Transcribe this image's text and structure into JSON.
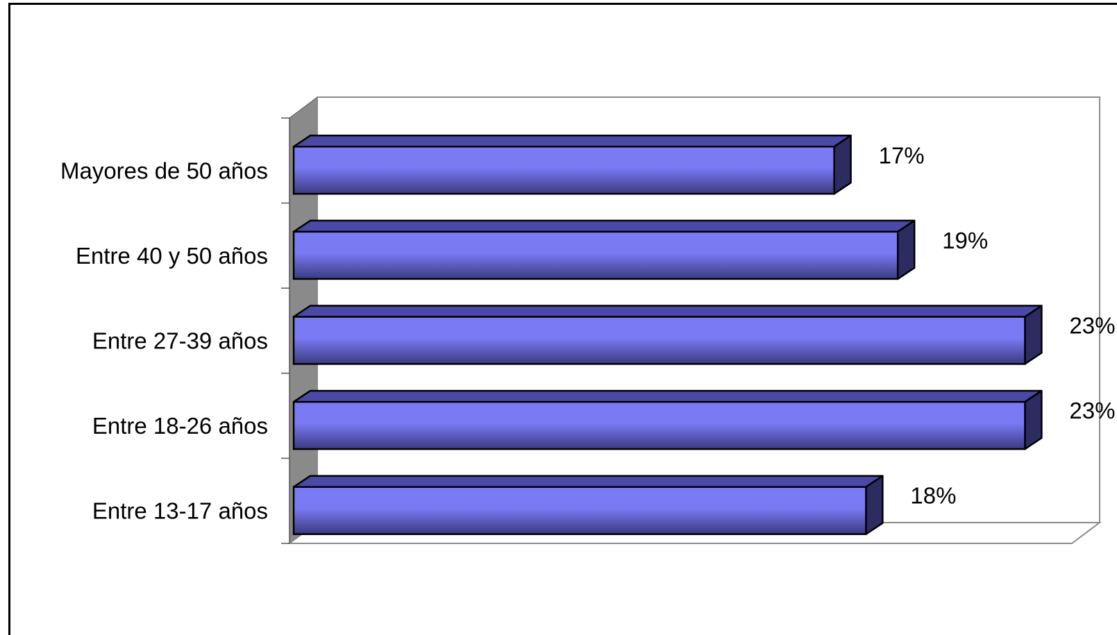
{
  "chart_data": {
    "type": "bar",
    "orientation": "horizontal",
    "three_d": true,
    "categories": [
      "Mayores de 50 años",
      "Entre 40 y 50 años",
      "Entre 27-39 años",
      "Entre 18-26 años",
      "Entre 13-17 años"
    ],
    "values": [
      17,
      19,
      23,
      23,
      18
    ],
    "value_labels": [
      "17%",
      "19%",
      "23%",
      "23%",
      "18%"
    ],
    "title": "",
    "xlabel": "",
    "ylabel": "",
    "xlim": [
      0,
      23
    ],
    "grid": false,
    "legend": "none",
    "colors": {
      "bar_front_light": "#7a7af5",
      "bar_front_dark": "#3a3a80",
      "bar_top": "#4a4aa6",
      "bar_side": "#2c2c60",
      "wall_side": "#8a8a8a",
      "outline": "#000000"
    }
  }
}
